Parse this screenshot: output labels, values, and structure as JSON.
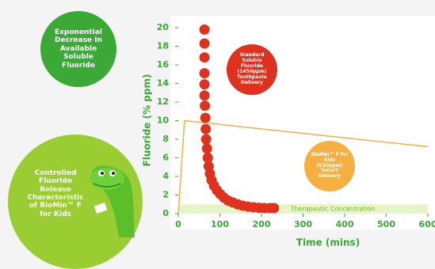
{
  "chart_data": {
    "type": "scatter",
    "xlabel": "Time (mins)",
    "ylabel": "Fluoride (% ppm)",
    "xlim": [
      0,
      600
    ],
    "ylim": [
      0,
      20
    ],
    "xticks": [
      0,
      100,
      200,
      300,
      400,
      500,
      600
    ],
    "yticks": [
      0,
      2,
      4,
      6,
      8,
      10,
      12,
      14,
      16,
      18,
      20
    ],
    "tick_color": "#3aa935",
    "series": [
      {
        "name": "Standard Soluble Fluoride (1450ppm) Toothpaste Delivery",
        "color": "#e0301e",
        "type": "scatter",
        "x": [
          63,
          63,
          63,
          63,
          63,
          63,
          64,
          65,
          66,
          67,
          69,
          71,
          73,
          76,
          80,
          86,
          93,
          101,
          110,
          120,
          131,
          143,
          155,
          168,
          181,
          194,
          207,
          220,
          230
        ],
        "values": [
          19.8,
          18.3,
          16.8,
          15.1,
          13.9,
          12.7,
          11.6,
          10.3,
          9.1,
          8.0,
          7.0,
          6.0,
          5.1,
          4.3,
          3.6,
          3.0,
          2.5,
          2.1,
          1.7,
          1.4,
          1.2,
          1.0,
          0.85,
          0.75,
          0.68,
          0.63,
          0.6,
          0.6,
          0.6
        ]
      },
      {
        "name": "BioMin™ F for Kids (530ppm) 'Smart' Delivery",
        "color": "#f5b041",
        "type": "line",
        "x": [
          0,
          15,
          600
        ],
        "values": [
          0,
          10,
          7.2
        ]
      }
    ],
    "band": {
      "range": [
        0,
        1
      ],
      "label": "Therapeutic Concentration",
      "color": "#e6f5c8"
    },
    "annotations": [
      "Exponential Decrease In Available Soluble Fluoride",
      "Controlled Fluoride Release Characteristic of BioMin™ F for Kids"
    ]
  }
}
